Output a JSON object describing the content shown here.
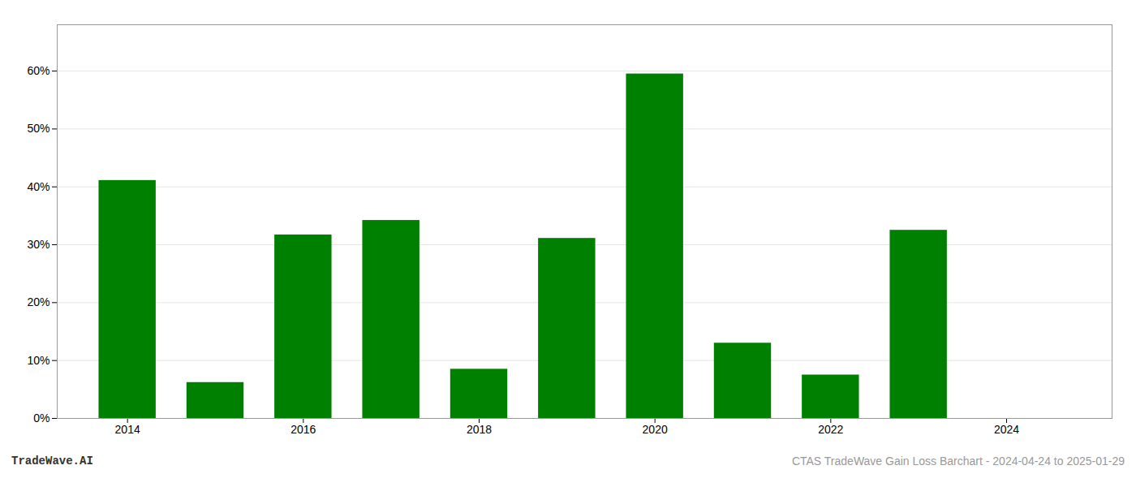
{
  "chart_data": {
    "type": "bar",
    "x": [
      2014,
      2015,
      2016,
      2017,
      2018,
      2019,
      2020,
      2021,
      2022,
      2023,
      2024
    ],
    "values": [
      0.411,
      0.062,
      0.317,
      0.342,
      0.085,
      0.311,
      0.595,
      0.13,
      0.075,
      0.325,
      0.0
    ],
    "color": "#008000",
    "xlim": [
      2013.2,
      2025.2
    ],
    "xticks": [
      2014,
      2016,
      2018,
      2020,
      2022,
      2024
    ],
    "ylim": [
      0.0,
      0.68
    ],
    "yticks": [
      {
        "value": 0.0,
        "label": "0%"
      },
      {
        "value": 0.1,
        "label": "10%"
      },
      {
        "value": 0.2,
        "label": "20%"
      },
      {
        "value": 0.3,
        "label": "30%"
      },
      {
        "value": 0.4,
        "label": "40%"
      },
      {
        "value": 0.5,
        "label": "50%"
      },
      {
        "value": 0.6,
        "label": "60%"
      }
    ],
    "grid": true,
    "annotations": [
      "TradeWave.AI",
      "CTAS TradeWave Gain Loss Barchart - 2024-04-24 to 2025-01-29"
    ]
  }
}
